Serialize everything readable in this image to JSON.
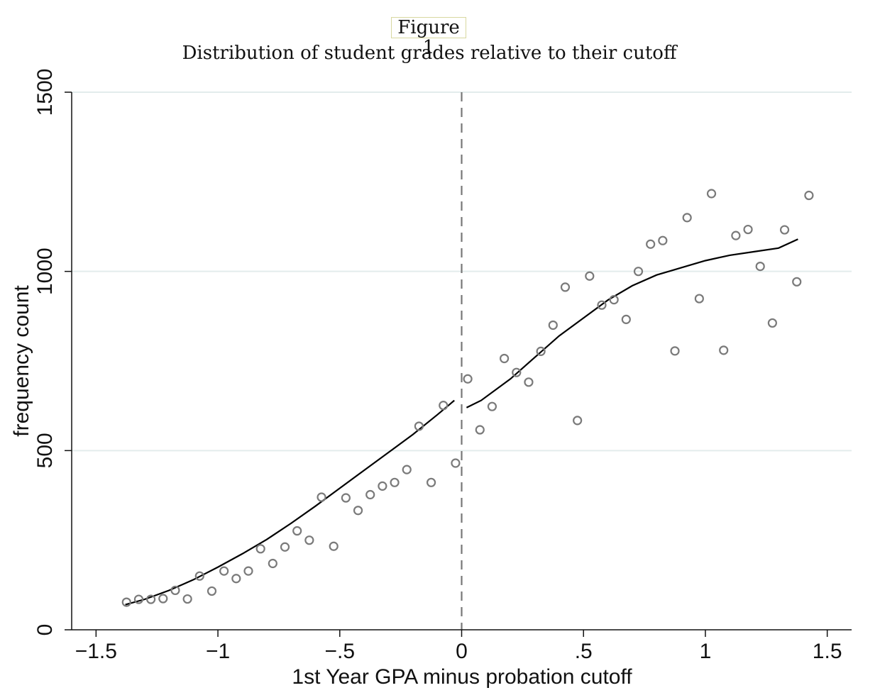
{
  "figure": {
    "label": "Figure 1",
    "title": "Distribution of student grades relative to their cutoff"
  },
  "chart_data": {
    "type": "scatter",
    "xlabel": "1st Year GPA minus probation cutoff",
    "ylabel": "frequency count",
    "xlim": [
      -1.6,
      1.6
    ],
    "ylim": [
      0,
      1500
    ],
    "x_ticks": [
      -1.5,
      -1,
      -0.5,
      0,
      0.5,
      1,
      1.5
    ],
    "x_tick_labels": [
      "−1.5",
      "−1",
      "−.5",
      "0",
      ".5",
      "1",
      "1.5"
    ],
    "y_ticks": [
      0,
      500,
      1000,
      1500
    ],
    "y_tick_labels": [
      "0",
      "500",
      "1000",
      "1500"
    ],
    "grid": "horizontal",
    "cutoff_line_x": 0,
    "series": [
      {
        "kind": "points",
        "x": [
          -1.375,
          -1.325,
          -1.275,
          -1.225,
          -1.175,
          -1.125,
          -1.075,
          -1.025,
          -0.975,
          -0.925,
          -0.875,
          -0.825,
          -0.775,
          -0.725,
          -0.675,
          -0.625,
          -0.575,
          -0.525,
          -0.475,
          -0.425,
          -0.375,
          -0.325,
          -0.275,
          -0.225,
          -0.175,
          -0.125,
          -0.075,
          -0.025,
          0.025,
          0.075,
          0.125,
          0.175,
          0.225,
          0.275,
          0.325,
          0.375,
          0.425,
          0.475,
          0.525,
          0.575,
          0.625,
          0.675,
          0.725,
          0.775,
          0.825,
          0.875,
          0.925,
          0.975,
          1.025,
          1.075,
          1.125,
          1.175,
          1.225,
          1.275,
          1.325,
          1.375,
          1.425
        ],
        "y": [
          77,
          85,
          85,
          87,
          110,
          86,
          150,
          108,
          164,
          143,
          164,
          226,
          185,
          231,
          276,
          250,
          370,
          233,
          368,
          333,
          377,
          401,
          411,
          447,
          568,
          411,
          626,
          465,
          700,
          558,
          623,
          757,
          718,
          691,
          777,
          850,
          956,
          584,
          987,
          906,
          921,
          866,
          1000,
          1076,
          1086,
          778,
          1150,
          924,
          1217,
          780,
          1100,
          1117,
          1014,
          856,
          1116,
          971,
          1212
        ]
      },
      {
        "kind": "line-left",
        "x": [
          -1.38,
          -1.3,
          -1.2,
          -1.1,
          -1.0,
          -0.9,
          -0.8,
          -0.7,
          -0.6,
          -0.5,
          -0.4,
          -0.3,
          -0.2,
          -0.1,
          -0.03
        ],
        "y": [
          70,
          85,
          110,
          140,
          175,
          212,
          252,
          297,
          345,
          395,
          445,
          495,
          545,
          600,
          640
        ]
      },
      {
        "kind": "line-right",
        "x": [
          0.02,
          0.08,
          0.2,
          0.3,
          0.4,
          0.5,
          0.6,
          0.7,
          0.8,
          0.9,
          1.0,
          1.1,
          1.2,
          1.3,
          1.38
        ],
        "y": [
          620,
          640,
          700,
          760,
          820,
          870,
          920,
          960,
          990,
          1010,
          1030,
          1045,
          1055,
          1065,
          1090
        ]
      }
    ]
  }
}
